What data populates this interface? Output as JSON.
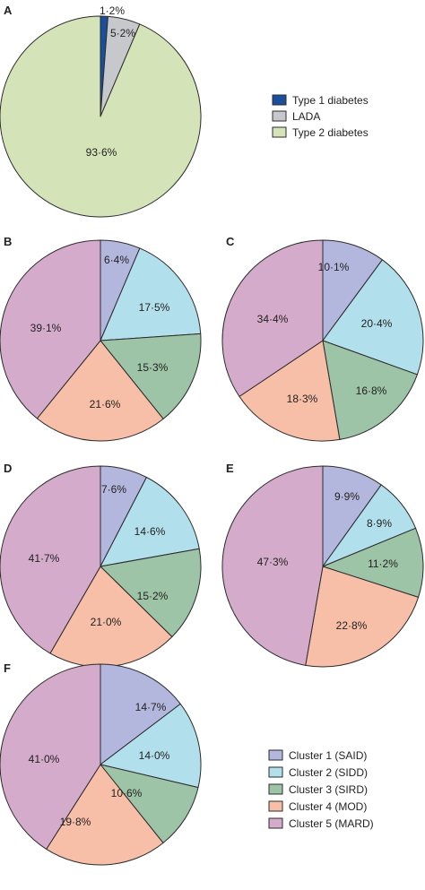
{
  "legend_top": [
    {
      "label": "Type 1 diabetes",
      "color": "#1a4f9c"
    },
    {
      "label": "LADA",
      "color": "#c6c8cb"
    },
    {
      "label": "Type 2 diabetes",
      "color": "#d5e3b8"
    }
  ],
  "legend_bottom": [
    {
      "label": "Cluster 1 (SAID)",
      "color": "#b3b6dd"
    },
    {
      "label": "Cluster 2 (SIDD)",
      "color": "#b2dfec"
    },
    {
      "label": "Cluster 3 (SIRD)",
      "color": "#9dc4a6"
    },
    {
      "label": "Cluster 4 (MOD)",
      "color": "#f7bea8"
    },
    {
      "label": "Cluster 5 (MARD)",
      "color": "#d5abcb"
    }
  ],
  "chart_data": [
    {
      "type": "pie",
      "panel": "A",
      "slices": [
        {
          "name": "Type 1 diabetes",
          "value": 1.2,
          "label": "1·2%",
          "color": "#1a4f9c"
        },
        {
          "name": "LADA",
          "value": 5.2,
          "label": "5·2%",
          "color": "#c6c8cb"
        },
        {
          "name": "Type 2 diabetes",
          "value": 93.6,
          "label": "93·6%",
          "color": "#d5e3b8"
        }
      ]
    },
    {
      "type": "pie",
      "panel": "B",
      "slices": [
        {
          "name": "Cluster 1 (SAID)",
          "value": 6.4,
          "label": "6·4%",
          "color": "#b3b6dd"
        },
        {
          "name": "Cluster 2 (SIDD)",
          "value": 17.5,
          "label": "17·5%",
          "color": "#b2dfec"
        },
        {
          "name": "Cluster 3 (SIRD)",
          "value": 15.3,
          "label": "15·3%",
          "color": "#9dc4a6"
        },
        {
          "name": "Cluster 4 (MOD)",
          "value": 21.6,
          "label": "21·6%",
          "color": "#f7bea8"
        },
        {
          "name": "Cluster 5 (MARD)",
          "value": 39.1,
          "label": "39·1%",
          "color": "#d5abcb"
        }
      ]
    },
    {
      "type": "pie",
      "panel": "C",
      "slices": [
        {
          "name": "Cluster 1 (SAID)",
          "value": 10.1,
          "label": "10·1%",
          "color": "#b3b6dd"
        },
        {
          "name": "Cluster 2 (SIDD)",
          "value": 20.4,
          "label": "20·4%",
          "color": "#b2dfec"
        },
        {
          "name": "Cluster 3 (SIRD)",
          "value": 16.8,
          "label": "16·8%",
          "color": "#9dc4a6"
        },
        {
          "name": "Cluster 4 (MOD)",
          "value": 18.3,
          "label": "18·3%",
          "color": "#f7bea8"
        },
        {
          "name": "Cluster 5 (MARD)",
          "value": 34.4,
          "label": "34·4%",
          "color": "#d5abcb"
        }
      ]
    },
    {
      "type": "pie",
      "panel": "D",
      "slices": [
        {
          "name": "Cluster 1 (SAID)",
          "value": 7.6,
          "label": "7·6%",
          "color": "#b3b6dd"
        },
        {
          "name": "Cluster 2 (SIDD)",
          "value": 14.6,
          "label": "14·6%",
          "color": "#b2dfec"
        },
        {
          "name": "Cluster 3 (SIRD)",
          "value": 15.2,
          "label": "15·2%",
          "color": "#9dc4a6"
        },
        {
          "name": "Cluster 4 (MOD)",
          "value": 21.0,
          "label": "21·0%",
          "color": "#f7bea8"
        },
        {
          "name": "Cluster 5 (MARD)",
          "value": 41.7,
          "label": "41·7%",
          "color": "#d5abcb"
        }
      ]
    },
    {
      "type": "pie",
      "panel": "E",
      "slices": [
        {
          "name": "Cluster 1 (SAID)",
          "value": 9.9,
          "label": "9·9%",
          "color": "#b3b6dd"
        },
        {
          "name": "Cluster 2 (SIDD)",
          "value": 8.9,
          "label": "8·9%",
          "color": "#b2dfec"
        },
        {
          "name": "Cluster 3 (SIRD)",
          "value": 11.2,
          "label": "11·2%",
          "color": "#9dc4a6"
        },
        {
          "name": "Cluster 4 (MOD)",
          "value": 22.8,
          "label": "22·8%",
          "color": "#f7bea8"
        },
        {
          "name": "Cluster 5 (MARD)",
          "value": 47.3,
          "label": "47·3%",
          "color": "#d5abcb"
        }
      ]
    },
    {
      "type": "pie",
      "panel": "F",
      "slices": [
        {
          "name": "Cluster 1 (SAID)",
          "value": 14.7,
          "label": "14·7%",
          "color": "#b3b6dd"
        },
        {
          "name": "Cluster 2 (SIDD)",
          "value": 14.0,
          "label": "14·0%",
          "color": "#b2dfec"
        },
        {
          "name": "Cluster 3 (SIRD)",
          "value": 10.6,
          "label": "10·6%",
          "color": "#9dc4a6"
        },
        {
          "name": "Cluster 4 (MOD)",
          "value": 19.8,
          "label": "19·8%",
          "color": "#f7bea8"
        },
        {
          "name": "Cluster 5 (MARD)",
          "value": 41.0,
          "label": "41·0%",
          "color": "#d5abcb"
        }
      ]
    }
  ]
}
